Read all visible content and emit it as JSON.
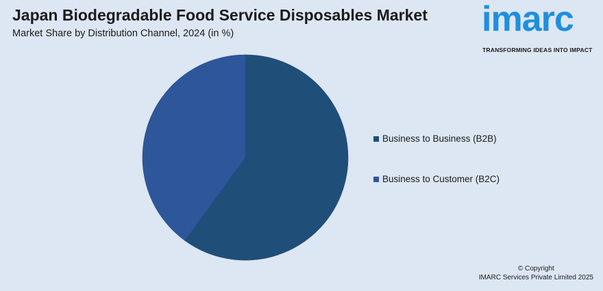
{
  "header": {
    "title": "Japan Biodegradable Food Service Disposables Market",
    "subtitle": "Market Share by Distribution Channel, 2024 (in %)"
  },
  "logo": {
    "word": "imarc",
    "tagline": "TRANSFORMING IDEAS INTO IMPACT",
    "color": "#1e8fe0"
  },
  "chart_data": {
    "type": "pie",
    "title": "Japan Biodegradable Food Service Disposables Market",
    "subtitle": "Market Share by Distribution Channel, 2024 (in %)",
    "categories": [
      "Business to Business (B2B)",
      "Business to Customer (B2C)"
    ],
    "values": [
      60,
      40
    ],
    "colors": [
      "#1f4e79",
      "#2e569b"
    ],
    "legend_position": "right",
    "start_angle_deg": 0,
    "direction": "clockwise"
  },
  "legend": {
    "items": [
      {
        "label": "Business to Business (B2B)",
        "color": "#1f4e79"
      },
      {
        "label": "Business to Customer (B2C)",
        "color": "#2e569b"
      }
    ]
  },
  "footer": {
    "copyright_line1": "© Copyright",
    "copyright_line2": "IMARC Services Private Limited 2025"
  }
}
